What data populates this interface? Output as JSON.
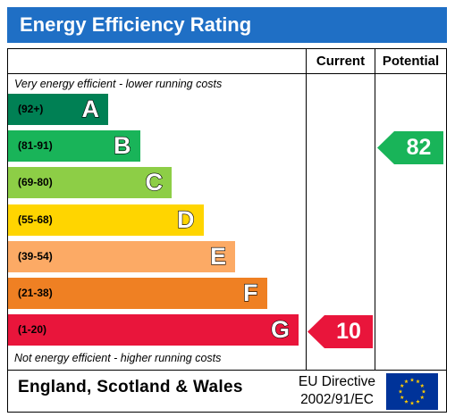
{
  "title": "Energy Efficiency Rating",
  "columns": {
    "current": "Current",
    "potential": "Potential"
  },
  "top_caption": "Very energy efficient - lower running costs",
  "bottom_caption": "Not energy efficient - higher running costs",
  "bands": [
    {
      "range": "(92+)",
      "letter": "A",
      "color": "#008054"
    },
    {
      "range": "(81-91)",
      "letter": "B",
      "color": "#19b459"
    },
    {
      "range": "(69-80)",
      "letter": "C",
      "color": "#8dce46"
    },
    {
      "range": "(55-68)",
      "letter": "D",
      "color": "#ffd500"
    },
    {
      "range": "(39-54)",
      "letter": "E",
      "color": "#fcaa65"
    },
    {
      "range": "(21-38)",
      "letter": "F",
      "color": "#ef8023"
    },
    {
      "range": "(1-20)",
      "letter": "G",
      "color": "#e9153b"
    }
  ],
  "current": {
    "value": "10",
    "band": "G",
    "color": "#e9153b"
  },
  "potential": {
    "value": "82",
    "band": "B",
    "color": "#19b459"
  },
  "footer": {
    "region": "England, Scotland & Wales",
    "directive_line1": "EU Directive",
    "directive_line2": "2002/91/EC",
    "flag_icon": "eu-flag-icon"
  },
  "colors": {
    "header_bg": "#1f6fc5",
    "flag_blue": "#003399",
    "flag_star": "#ffcc00"
  }
}
